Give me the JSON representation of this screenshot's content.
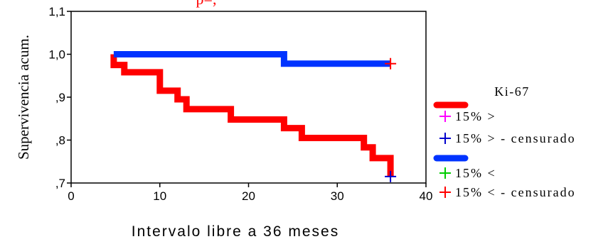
{
  "chart_data": {
    "type": "line",
    "title_fragment": "p=,",
    "xlabel": "Intervalo libre a 36 meses",
    "ylabel": "Supervivencia acum.",
    "xlim": [
      0,
      40
    ],
    "ylim": [
      0.7,
      1.1
    ],
    "x_ticks": [
      0,
      10,
      20,
      30,
      40
    ],
    "x_tick_labels": [
      "0",
      "10",
      "20",
      "30",
      "40"
    ],
    "y_ticks": [
      0.7,
      0.8,
      0.9,
      1.0,
      1.1
    ],
    "y_tick_labels": [
      ",7",
      ",8",
      ",9",
      "1,0",
      "1,1"
    ],
    "grid": false,
    "legend": {
      "title": "Ki-67",
      "position": "right",
      "entries": [
        {
          "label": "15%  >",
          "symbol": "line",
          "color": "#ff0000"
        },
        {
          "label": "15%  >",
          "symbol": "plus",
          "color": "#ff00ff"
        },
        {
          "label": "15%  > - censurado",
          "symbol": "plus",
          "color": "#0000cc"
        },
        {
          "label": "15%  <",
          "symbol": "line",
          "color": "#0033ff"
        },
        {
          "label": "15%  <",
          "symbol": "plus",
          "color": "#00cc00"
        },
        {
          "label": "15%  < - censurado",
          "symbol": "plus",
          "color": "#ff0000"
        }
      ]
    },
    "series": [
      {
        "color": "#ff0000",
        "step_points": [
          [
            4.8,
            1.0
          ],
          [
            4.8,
            0.975
          ],
          [
            6,
            0.975
          ],
          [
            6,
            0.958
          ],
          [
            10,
            0.958
          ],
          [
            10,
            0.915
          ],
          [
            12,
            0.915
          ],
          [
            12,
            0.895
          ],
          [
            13,
            0.895
          ],
          [
            13,
            0.872
          ],
          [
            18,
            0.872
          ],
          [
            18,
            0.848
          ],
          [
            24,
            0.848
          ],
          [
            24,
            0.828
          ],
          [
            26,
            0.828
          ],
          [
            26,
            0.805
          ],
          [
            33,
            0.805
          ],
          [
            33,
            0.783
          ],
          [
            34,
            0.783
          ],
          [
            34,
            0.758
          ],
          [
            36,
            0.758
          ],
          [
            36,
            0.715
          ]
        ],
        "censored": [
          [
            36,
            0.715
          ]
        ],
        "censor_color": "#0000cc"
      },
      {
        "color": "#0033ff",
        "step_points": [
          [
            4.8,
            1.0
          ],
          [
            24,
            1.0
          ],
          [
            24,
            0.978
          ],
          [
            36,
            0.978
          ]
        ],
        "censored": [
          [
            36,
            0.978
          ]
        ],
        "censor_color": "#ff0000"
      }
    ]
  }
}
